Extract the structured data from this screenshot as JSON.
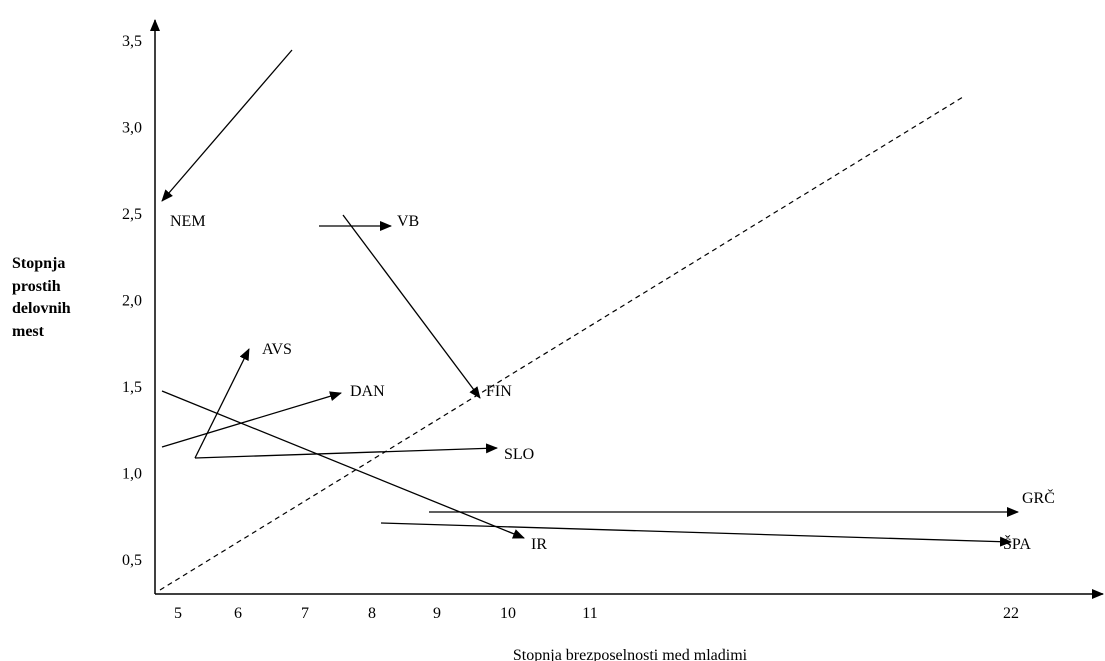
{
  "chart_data": {
    "type": "line",
    "xlabel": "Stopnja brezposelnosti med mladimi",
    "ylabel_lines": [
      "Stopnja",
      "prostih",
      "delovnih",
      "mest"
    ],
    "x_ticks": [
      {
        "value": 5,
        "label": "5"
      },
      {
        "value": 6,
        "label": "6"
      },
      {
        "value": 7,
        "label": "7"
      },
      {
        "value": 8,
        "label": "8"
      },
      {
        "value": 9,
        "label": "9"
      },
      {
        "value": 10,
        "label": "10"
      },
      {
        "value": 11,
        "label": "11"
      },
      {
        "value": 22,
        "label": "22"
      }
    ],
    "y_ticks": [
      {
        "value": 0.5,
        "label": "0,5"
      },
      {
        "value": 1.0,
        "label": "1,0"
      },
      {
        "value": 1.5,
        "label": "1,5"
      },
      {
        "value": 2.0,
        "label": "2,0"
      },
      {
        "value": 2.5,
        "label": "2,5"
      },
      {
        "value": 3.0,
        "label": "3,0"
      },
      {
        "value": 3.5,
        "label": "3,5"
      }
    ],
    "x_scale": "broken axis: 5 to 11 linear, then break to 22",
    "arrows": [
      {
        "name": "NEM",
        "from": [
          6.8,
          3.45
        ],
        "to": [
          4.9,
          2.61
        ]
      },
      {
        "name": "VB",
        "from": [
          7.7,
          2.52
        ],
        "to": [
          9.6,
          1.47
        ],
        "secondary_from": [
          7.1,
          2.46
        ],
        "secondary_to": [
          7.8,
          2.46
        ]
      },
      {
        "name": "FIN",
        "from": [
          7.7,
          2.52
        ],
        "to": [
          9.6,
          1.47
        ]
      },
      {
        "name": "AVS",
        "from": [
          5.3,
          1.11
        ],
        "to": [
          6.0,
          1.74
        ]
      },
      {
        "name": "DAN",
        "from": [
          4.9,
          1.18
        ],
        "to": [
          7.5,
          1.49
        ]
      },
      {
        "name": "SLO",
        "from": [
          5.3,
          1.11
        ],
        "to": [
          9.8,
          1.17
        ]
      },
      {
        "name": "IR",
        "from": [
          4.9,
          1.5
        ],
        "to": [
          10.3,
          0.65
        ]
      },
      {
        "name": "GRČ",
        "from": [
          9.0,
          0.79
        ],
        "to": [
          22.0,
          0.79
        ]
      },
      {
        "name": "ŠPA",
        "from": [
          8.1,
          0.73
        ],
        "to": [
          22.0,
          0.62
        ]
      }
    ],
    "labels": [
      {
        "text": "NEM"
      },
      {
        "text": "VB"
      },
      {
        "text": "FIN"
      },
      {
        "text": "AVS"
      },
      {
        "text": "DAN"
      },
      {
        "text": "SLO"
      },
      {
        "text": "IR"
      },
      {
        "text": "GRČ"
      },
      {
        "text": "ŠPA"
      }
    ],
    "reference_line": {
      "style": "dashed",
      "from": [
        4.9,
        0.35
      ],
      "to": [
        21.0,
        3.18
      ]
    },
    "ylim": [
      0.35,
      3.6
    ],
    "grid": false
  }
}
